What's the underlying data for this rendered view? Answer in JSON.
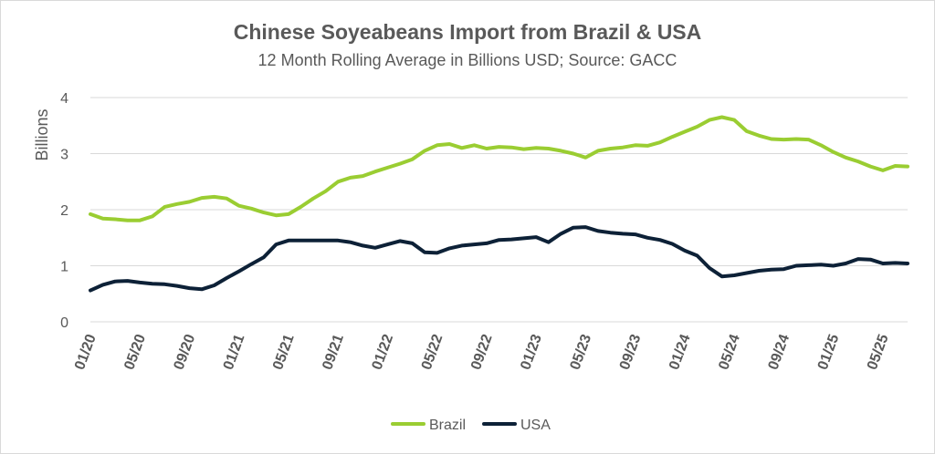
{
  "chart_data": {
    "type": "line",
    "title": "Chinese Soyeabeans Import from Brazil & USA",
    "subtitle": "12 Month Rolling Average in Billions USD; Source: GACC",
    "ylabel": "Billions",
    "xlabel": "",
    "ylim": [
      0,
      4
    ],
    "yticks": [
      "0",
      "1",
      "2",
      "3",
      "4"
    ],
    "grid": true,
    "legend": "bottom",
    "xtick_labels": [
      "01/20",
      "05/20",
      "09/20",
      "01/21",
      "05/21",
      "09/21",
      "01/22",
      "05/22",
      "09/22",
      "01/23",
      "05/23",
      "09/23",
      "01/24",
      "05/24",
      "09/24",
      "01/25",
      "05/25"
    ],
    "x": [
      "01/20",
      "02/20",
      "03/20",
      "04/20",
      "05/20",
      "06/20",
      "07/20",
      "08/20",
      "09/20",
      "10/20",
      "11/20",
      "12/20",
      "01/21",
      "02/21",
      "03/21",
      "04/21",
      "05/21",
      "06/21",
      "07/21",
      "08/21",
      "09/21",
      "10/21",
      "11/21",
      "12/21",
      "01/22",
      "02/22",
      "03/22",
      "04/22",
      "05/22",
      "06/22",
      "07/22",
      "08/22",
      "09/22",
      "10/22",
      "11/22",
      "12/22",
      "01/23",
      "02/23",
      "03/23",
      "04/23",
      "05/23",
      "06/23",
      "07/23",
      "08/23",
      "09/23",
      "10/23",
      "11/23",
      "12/23",
      "01/24",
      "02/24",
      "03/24",
      "04/24",
      "05/24",
      "06/24",
      "07/24",
      "08/24",
      "09/24",
      "10/24",
      "11/24",
      "12/24",
      "01/25",
      "02/25",
      "03/25",
      "04/25",
      "05/25",
      "06/25",
      "07/25"
    ],
    "series": [
      {
        "name": "Brazil",
        "color": "#9acd32",
        "values": [
          1.92,
          1.84,
          1.83,
          1.81,
          1.81,
          1.88,
          2.05,
          2.1,
          2.14,
          2.21,
          2.23,
          2.2,
          2.07,
          2.02,
          1.95,
          1.9,
          1.92,
          2.05,
          2.2,
          2.33,
          2.5,
          2.57,
          2.6,
          2.68,
          2.75,
          2.82,
          2.9,
          3.05,
          3.15,
          3.17,
          3.1,
          3.15,
          3.09,
          3.12,
          3.11,
          3.08,
          3.1,
          3.09,
          3.05,
          3.0,
          2.93,
          3.05,
          3.09,
          3.11,
          3.15,
          3.14,
          3.2,
          3.3,
          3.39,
          3.48,
          3.6,
          3.65,
          3.6,
          3.4,
          3.32,
          3.26,
          3.25,
          3.26,
          3.25,
          3.15,
          3.03,
          2.93,
          2.86,
          2.77,
          2.7,
          2.78,
          2.77
        ]
      },
      {
        "name": "USA",
        "color": "#0d2137",
        "values": [
          0.56,
          0.66,
          0.72,
          0.73,
          0.7,
          0.68,
          0.67,
          0.64,
          0.6,
          0.58,
          0.65,
          0.78,
          0.9,
          1.03,
          1.15,
          1.38,
          1.45,
          1.45,
          1.45,
          1.45,
          1.45,
          1.42,
          1.36,
          1.32,
          1.38,
          1.44,
          1.4,
          1.24,
          1.23,
          1.31,
          1.36,
          1.38,
          1.4,
          1.46,
          1.47,
          1.49,
          1.51,
          1.42,
          1.57,
          1.68,
          1.69,
          1.62,
          1.59,
          1.57,
          1.56,
          1.5,
          1.46,
          1.39,
          1.27,
          1.18,
          0.96,
          0.81,
          0.83,
          0.87,
          0.91,
          0.93,
          0.94,
          1.0,
          1.01,
          1.02,
          1.0,
          1.04,
          1.12,
          1.11,
          1.04,
          1.05,
          1.04
        ]
      }
    ]
  }
}
